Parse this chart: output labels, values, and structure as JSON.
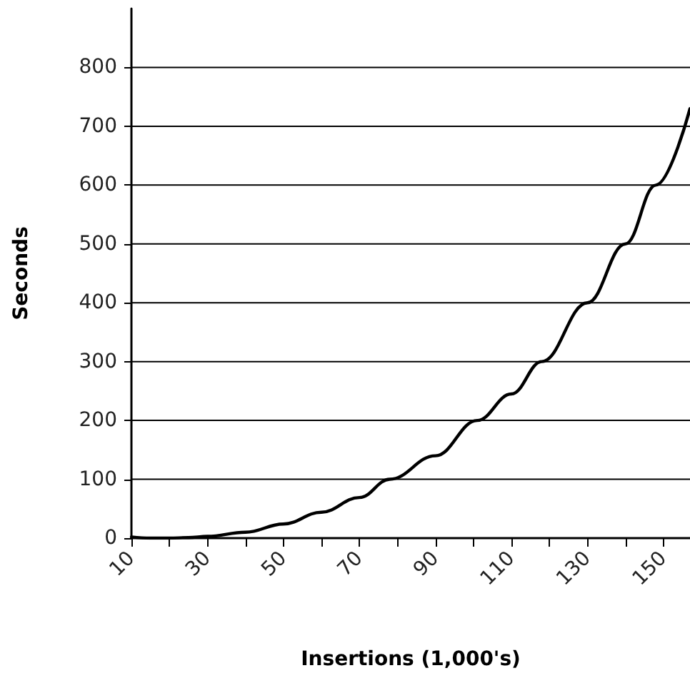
{
  "chart_data": {
    "type": "line",
    "xlabel": "Insertions (1,000's)",
    "ylabel": "Seconds",
    "x": [
      10,
      15,
      20,
      25,
      30,
      40,
      50,
      60,
      70,
      78,
      90,
      101,
      110,
      118,
      130,
      140,
      148,
      157
    ],
    "series": [
      {
        "color": "#000000",
        "values": [
          2,
          0,
          0,
          1,
          3,
          10,
          24,
          44,
          69,
          100,
          140,
          200,
          245,
          300,
          400,
          500,
          600,
          730
        ]
      }
    ],
    "xlim": [
      10,
      157
    ],
    "xticks": [
      10,
      {
        "value": 20,
        "label": null
      },
      30,
      {
        "value": 40,
        "label": null
      },
      50,
      {
        "value": 60,
        "label": null
      },
      70,
      {
        "value": 80,
        "label": null
      },
      90,
      {
        "value": 100,
        "label": null
      },
      110,
      {
        "value": 120,
        "label": null
      },
      130,
      {
        "value": 140,
        "label": null
      },
      150
    ],
    "ylim": [
      0,
      900
    ],
    "yticks": [
      0,
      100,
      200,
      300,
      400,
      500,
      600,
      700,
      800
    ],
    "grid": "y",
    "marker": "none",
    "line_style": "solid"
  }
}
